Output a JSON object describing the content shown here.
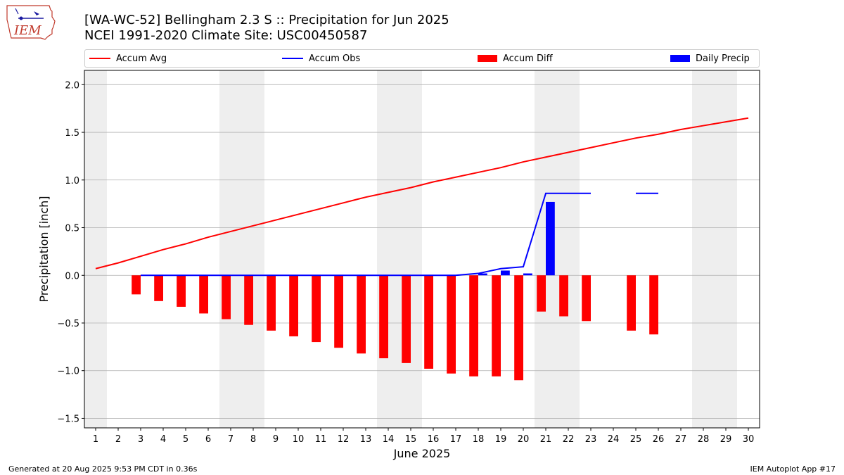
{
  "header": {
    "title_line1": "[WA-WC-52] Bellingham 2.3 S :: Precipitation for Jun 2025",
    "title_line2": "NCEI 1991-2020 Climate Site: USC00450587",
    "logo_text": "IEM"
  },
  "legend": {
    "items": [
      {
        "label": "Accum Avg",
        "kind": "line",
        "color": "#ff0000"
      },
      {
        "label": "Accum Obs",
        "kind": "line",
        "color": "#0000ff"
      },
      {
        "label": "Accum Diff",
        "kind": "box",
        "color": "#ff0000"
      },
      {
        "label": "Daily Precip",
        "kind": "box",
        "color": "#0000ff"
      }
    ]
  },
  "footer": {
    "left": "Generated at 20 Aug 2025 9:53 PM CDT in 0.36s",
    "right": "IEM Autoplot App #17"
  },
  "chart_data": {
    "type": "bar",
    "xlabel": "June 2025",
    "ylabel": "Precipitation [inch]",
    "xlim": [
      0.5,
      30.5
    ],
    "ylim": [
      -1.6,
      2.15
    ],
    "yticks": [
      -1.5,
      -1.0,
      -0.5,
      0.0,
      0.5,
      1.0,
      1.5,
      2.0
    ],
    "ytick_labels": [
      "−1.5",
      "−1.0",
      "−0.5",
      "0.0",
      "0.5",
      "1.0",
      "1.5",
      "2.0"
    ],
    "xticks": [
      1,
      2,
      3,
      4,
      5,
      6,
      7,
      8,
      9,
      10,
      11,
      12,
      13,
      14,
      15,
      16,
      17,
      18,
      19,
      20,
      21,
      22,
      23,
      24,
      25,
      26,
      27,
      28,
      29,
      30
    ],
    "grid": "y",
    "legend_placement": "top",
    "weekend_shading": [
      [
        0.5,
        1.5
      ],
      [
        6.5,
        8.5
      ],
      [
        13.5,
        15.5
      ],
      [
        20.5,
        22.5
      ],
      [
        27.5,
        29.5
      ]
    ],
    "colors": {
      "avg": "#ff0000",
      "obs": "#0000ff",
      "diff": "#ff0000",
      "daily": "#0000ff",
      "shade": "#eeeeee",
      "grid": "#b0b0b0"
    },
    "series": [
      {
        "name": "Accum Avg",
        "kind": "line",
        "x": [
          1,
          2,
          3,
          4,
          5,
          6,
          7,
          8,
          9,
          10,
          11,
          12,
          13,
          14,
          15,
          16,
          17,
          18,
          19,
          20,
          21,
          22,
          23,
          24,
          25,
          26,
          27,
          28,
          29,
          30
        ],
        "values": [
          0.07,
          0.13,
          0.2,
          0.27,
          0.33,
          0.4,
          0.46,
          0.52,
          0.58,
          0.64,
          0.7,
          0.76,
          0.82,
          0.87,
          0.92,
          0.98,
          1.03,
          1.08,
          1.13,
          1.19,
          1.24,
          1.29,
          1.34,
          1.39,
          1.44,
          1.48,
          1.53,
          1.57,
          1.61,
          1.65
        ]
      },
      {
        "name": "Accum Obs",
        "kind": "line",
        "x": [
          3,
          4,
          5,
          6,
          7,
          8,
          9,
          10,
          11,
          12,
          13,
          14,
          15,
          16,
          17,
          18,
          19,
          20,
          21,
          22,
          23
        ],
        "values": [
          0.0,
          0.0,
          0.0,
          0.0,
          0.0,
          0.0,
          0.0,
          0.0,
          0.0,
          0.0,
          0.0,
          0.0,
          0.0,
          0.0,
          0.0,
          0.02,
          0.07,
          0.09,
          0.86,
          0.86,
          0.86
        ]
      },
      {
        "name": "Accum Obs",
        "kind": "line",
        "legend": false,
        "x": [
          25,
          26
        ],
        "values": [
          0.86,
          0.86
        ]
      },
      {
        "name": "Accum Diff",
        "kind": "bar",
        "x": [
          3,
          4,
          5,
          6,
          7,
          8,
          9,
          10,
          11,
          12,
          13,
          14,
          15,
          16,
          17,
          18,
          19,
          20,
          21,
          22,
          23,
          25,
          26
        ],
        "values": [
          -0.2,
          -0.27,
          -0.33,
          -0.4,
          -0.46,
          -0.52,
          -0.58,
          -0.64,
          -0.7,
          -0.76,
          -0.82,
          -0.87,
          -0.92,
          -0.98,
          -1.03,
          -1.06,
          -1.06,
          -1.1,
          -0.38,
          -0.43,
          -0.48,
          -0.58,
          -0.62
        ]
      },
      {
        "name": "Daily Precip",
        "kind": "bar",
        "x": [
          18,
          19,
          20,
          21
        ],
        "values": [
          0.02,
          0.05,
          0.02,
          0.77
        ]
      }
    ]
  }
}
